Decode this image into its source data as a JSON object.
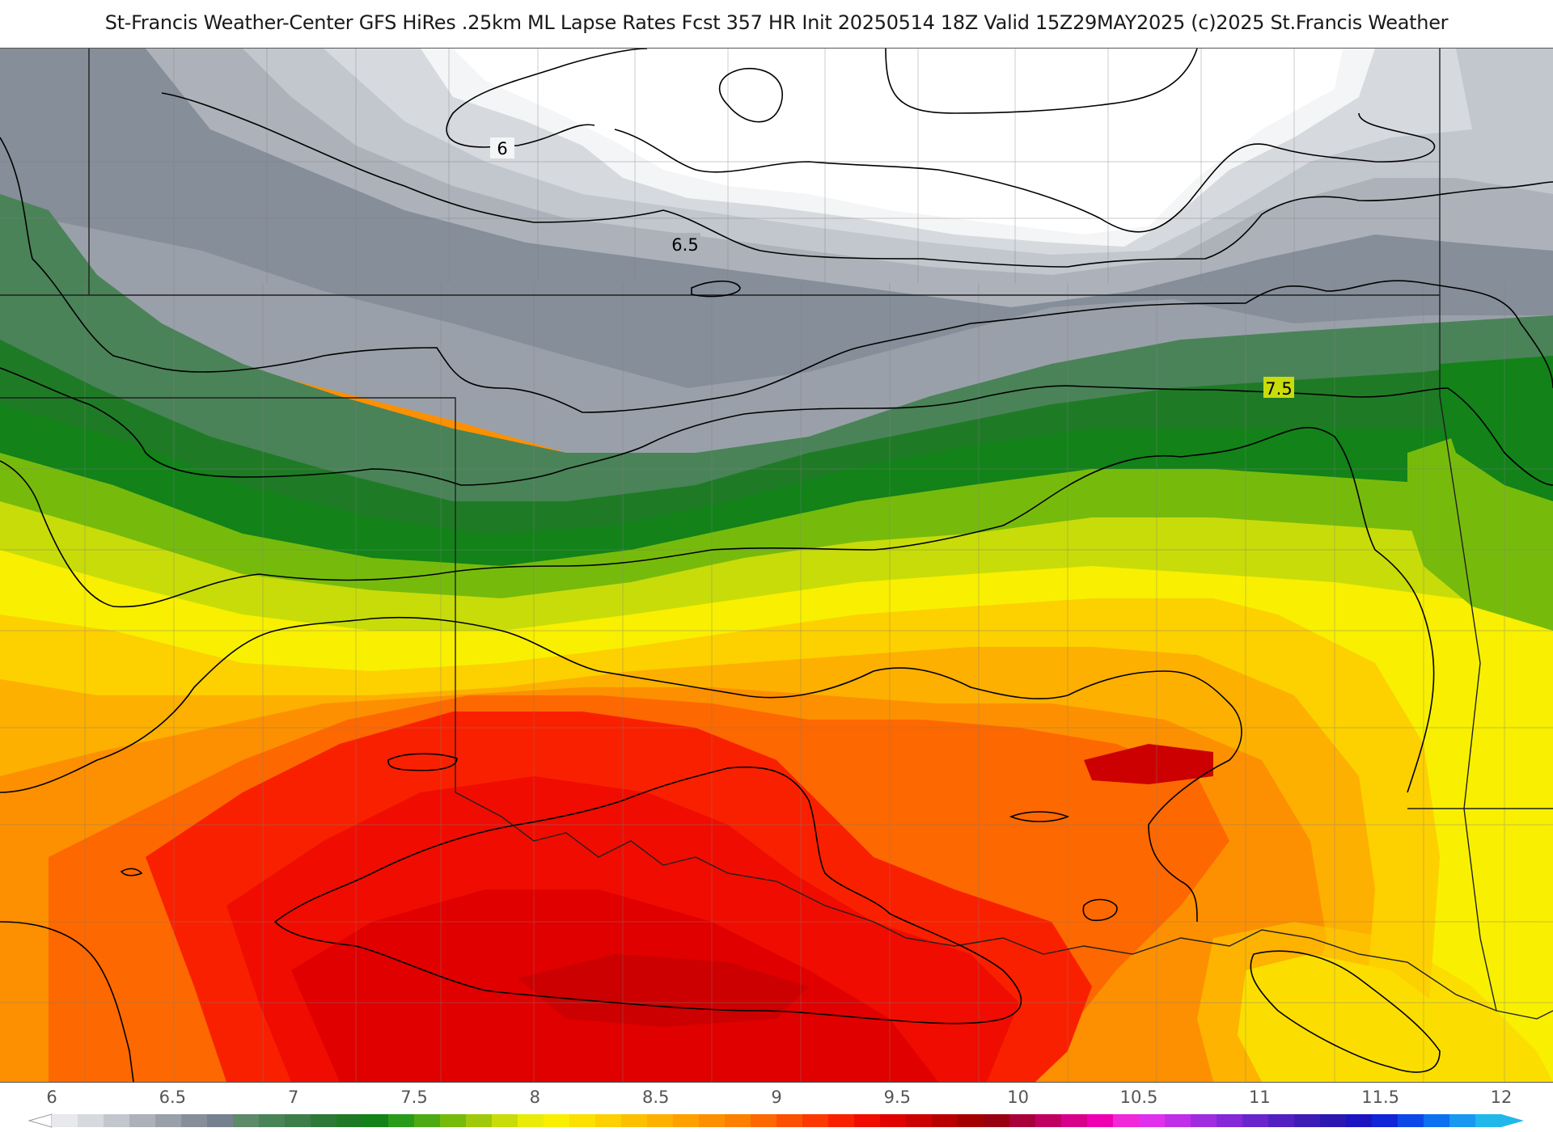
{
  "header": {
    "title": "St-Francis Weather-Center GFS HiRes .25km ML Lapse Rates  Fcst 357 HR Init 20250514 18Z  Valid 15Z29MAY2025    (c)2025 St.Francis Weather"
  },
  "map": {
    "contour_labels": [
      "6",
      "6.5",
      "7.5"
    ]
  },
  "colorbar": {
    "tick_labels": [
      "6",
      "6.5",
      "7",
      "7.5",
      "8",
      "8.5",
      "9",
      "9.5",
      "10",
      "10.5",
      "11",
      "11.5",
      "12"
    ],
    "colors": [
      "#e8e9ec",
      "#d6d9de",
      "#c2c6cd",
      "#adb2ba",
      "#9aa0a9",
      "#858e99",
      "#768190",
      "#5c8a6a",
      "#4a8358",
      "#3c7d48",
      "#2e7838",
      "#1f7a26",
      "#128219",
      "#2a9a1a",
      "#4eaa12",
      "#76bb0c",
      "#a0c90c",
      "#c8dc0a",
      "#e8ec08",
      "#f8f000",
      "#fbe000",
      "#fdd000",
      "#fdc000",
      "#fdb000",
      "#fda000",
      "#fd9000",
      "#fd8000",
      "#fd6800",
      "#fc5000",
      "#fb3800",
      "#f92000",
      "#f00c00",
      "#e00000",
      "#cc0000",
      "#b80000",
      "#a40000",
      "#960010",
      "#a8003a",
      "#c00060",
      "#d8008a",
      "#ee00b2",
      "#f028d8",
      "#e030ec",
      "#c02ee8",
      "#a02ce0",
      "#8428d8",
      "#6a24cc",
      "#5220c0",
      "#3e1cb6",
      "#2c18b0",
      "#1c14c0",
      "#1024d8",
      "#0c48e8",
      "#0c70f0",
      "#1898f0",
      "#20b8ea"
    ]
  }
}
